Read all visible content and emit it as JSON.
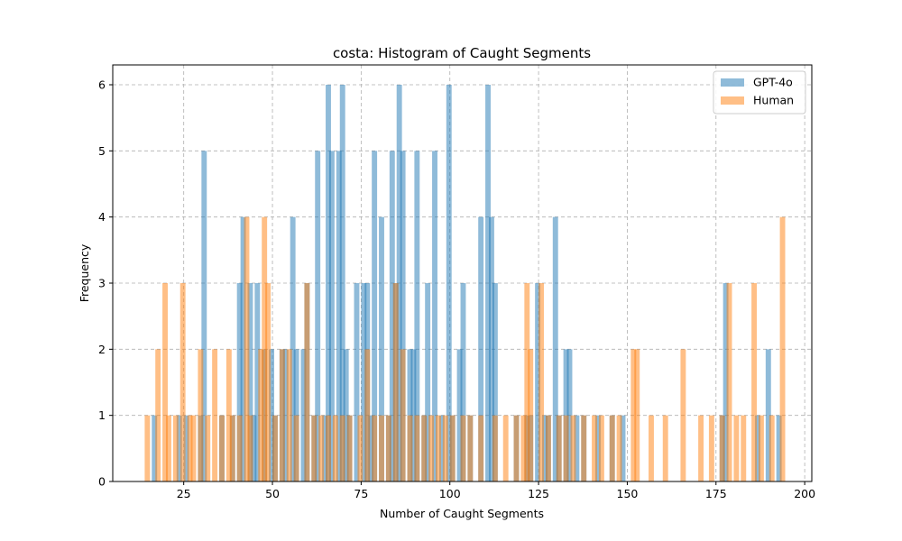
{
  "chart_data": {
    "type": "histogram",
    "title": "costa: Histogram of Caught Segments",
    "xlabel": "Number of Caught Segments",
    "ylabel": "Frequency",
    "xlim": [
      5,
      202
    ],
    "ylim": [
      0,
      6.3
    ],
    "xticks": [
      25,
      50,
      75,
      100,
      125,
      150,
      175,
      200
    ],
    "yticks": [
      0,
      1,
      2,
      3,
      4,
      5,
      6
    ],
    "grid": true,
    "legend_position": "top-right",
    "bin_width": 1.5,
    "series": [
      {
        "name": "GPT-4o",
        "color": "#1f77b4",
        "opacity": 0.5,
        "bins": [
          [
            16,
            1
          ],
          [
            23,
            1
          ],
          [
            25,
            1
          ],
          [
            29,
            1
          ],
          [
            30,
            5
          ],
          [
            35,
            1
          ],
          [
            38,
            1
          ],
          [
            40,
            3
          ],
          [
            41,
            4
          ],
          [
            43,
            3
          ],
          [
            44,
            1
          ],
          [
            45,
            3
          ],
          [
            47,
            2
          ],
          [
            49,
            2
          ],
          [
            50,
            1
          ],
          [
            52,
            2
          ],
          [
            53,
            2
          ],
          [
            55,
            4
          ],
          [
            56,
            2
          ],
          [
            58,
            2
          ],
          [
            59,
            3
          ],
          [
            61,
            1
          ],
          [
            62,
            5
          ],
          [
            64,
            1
          ],
          [
            65,
            6
          ],
          [
            66,
            5
          ],
          [
            68,
            5
          ],
          [
            69,
            6
          ],
          [
            70,
            2
          ],
          [
            71,
            1
          ],
          [
            73,
            3
          ],
          [
            75,
            3
          ],
          [
            76,
            3
          ],
          [
            77,
            1
          ],
          [
            78,
            5
          ],
          [
            80,
            4
          ],
          [
            82,
            1
          ],
          [
            83,
            5
          ],
          [
            84,
            3
          ],
          [
            85,
            6
          ],
          [
            86,
            5
          ],
          [
            88,
            2
          ],
          [
            89,
            2
          ],
          [
            90,
            5
          ],
          [
            92,
            1
          ],
          [
            93,
            3
          ],
          [
            95,
            5
          ],
          [
            97,
            1
          ],
          [
            99,
            6
          ],
          [
            100,
            1
          ],
          [
            102,
            2
          ],
          [
            103,
            3
          ],
          [
            105,
            1
          ],
          [
            108,
            4
          ],
          [
            110,
            6
          ],
          [
            111,
            4
          ],
          [
            112,
            3
          ],
          [
            118,
            1
          ],
          [
            121,
            1
          ],
          [
            122,
            1
          ],
          [
            124,
            3
          ],
          [
            126,
            1
          ],
          [
            127,
            1
          ],
          [
            129,
            4
          ],
          [
            130,
            1
          ],
          [
            132,
            2
          ],
          [
            133,
            2
          ],
          [
            135,
            1
          ],
          [
            137,
            1
          ],
          [
            141,
            1
          ],
          [
            145,
            1
          ],
          [
            148,
            1
          ],
          [
            176,
            1
          ],
          [
            177,
            3
          ],
          [
            186,
            1
          ],
          [
            189,
            2
          ],
          [
            192,
            1
          ]
        ]
      },
      {
        "name": "Human",
        "color": "#ff7f0e",
        "opacity": 0.5,
        "bins": [
          [
            14,
            1
          ],
          [
            17,
            2
          ],
          [
            19,
            3
          ],
          [
            20,
            1
          ],
          [
            22,
            1
          ],
          [
            24,
            3
          ],
          [
            26,
            1
          ],
          [
            27,
            1
          ],
          [
            29,
            2
          ],
          [
            31,
            1
          ],
          [
            33,
            2
          ],
          [
            35,
            1
          ],
          [
            37,
            2
          ],
          [
            38,
            1
          ],
          [
            40,
            1
          ],
          [
            42,
            4
          ],
          [
            43,
            1
          ],
          [
            46,
            2
          ],
          [
            47,
            4
          ],
          [
            48,
            3
          ],
          [
            50,
            1
          ],
          [
            52,
            2
          ],
          [
            54,
            2
          ],
          [
            56,
            1
          ],
          [
            59,
            3
          ],
          [
            61,
            1
          ],
          [
            63,
            1
          ],
          [
            65,
            1
          ],
          [
            67,
            1
          ],
          [
            69,
            1
          ],
          [
            71,
            1
          ],
          [
            74,
            1
          ],
          [
            76,
            2
          ],
          [
            78,
            1
          ],
          [
            80,
            1
          ],
          [
            82,
            1
          ],
          [
            84,
            3
          ],
          [
            86,
            2
          ],
          [
            88,
            1
          ],
          [
            90,
            1
          ],
          [
            92,
            1
          ],
          [
            94,
            1
          ],
          [
            96,
            1
          ],
          [
            98,
            1
          ],
          [
            100,
            1
          ],
          [
            103,
            1
          ],
          [
            105,
            1
          ],
          [
            108,
            1
          ],
          [
            112,
            1
          ],
          [
            115,
            1
          ],
          [
            118,
            1
          ],
          [
            120,
            1
          ],
          [
            121,
            3
          ],
          [
            122,
            2
          ],
          [
            125,
            3
          ],
          [
            127,
            1
          ],
          [
            130,
            1
          ],
          [
            132,
            1
          ],
          [
            134,
            1
          ],
          [
            137,
            1
          ],
          [
            140,
            1
          ],
          [
            142,
            1
          ],
          [
            145,
            1
          ],
          [
            147,
            1
          ],
          [
            151,
            2
          ],
          [
            152,
            2
          ],
          [
            156,
            1
          ],
          [
            160,
            1
          ],
          [
            165,
            2
          ],
          [
            170,
            1
          ],
          [
            173,
            1
          ],
          [
            176,
            1
          ],
          [
            178,
            3
          ],
          [
            180,
            1
          ],
          [
            182,
            1
          ],
          [
            185,
            3
          ],
          [
            187,
            1
          ],
          [
            190,
            1
          ],
          [
            193,
            4
          ]
        ]
      }
    ]
  }
}
